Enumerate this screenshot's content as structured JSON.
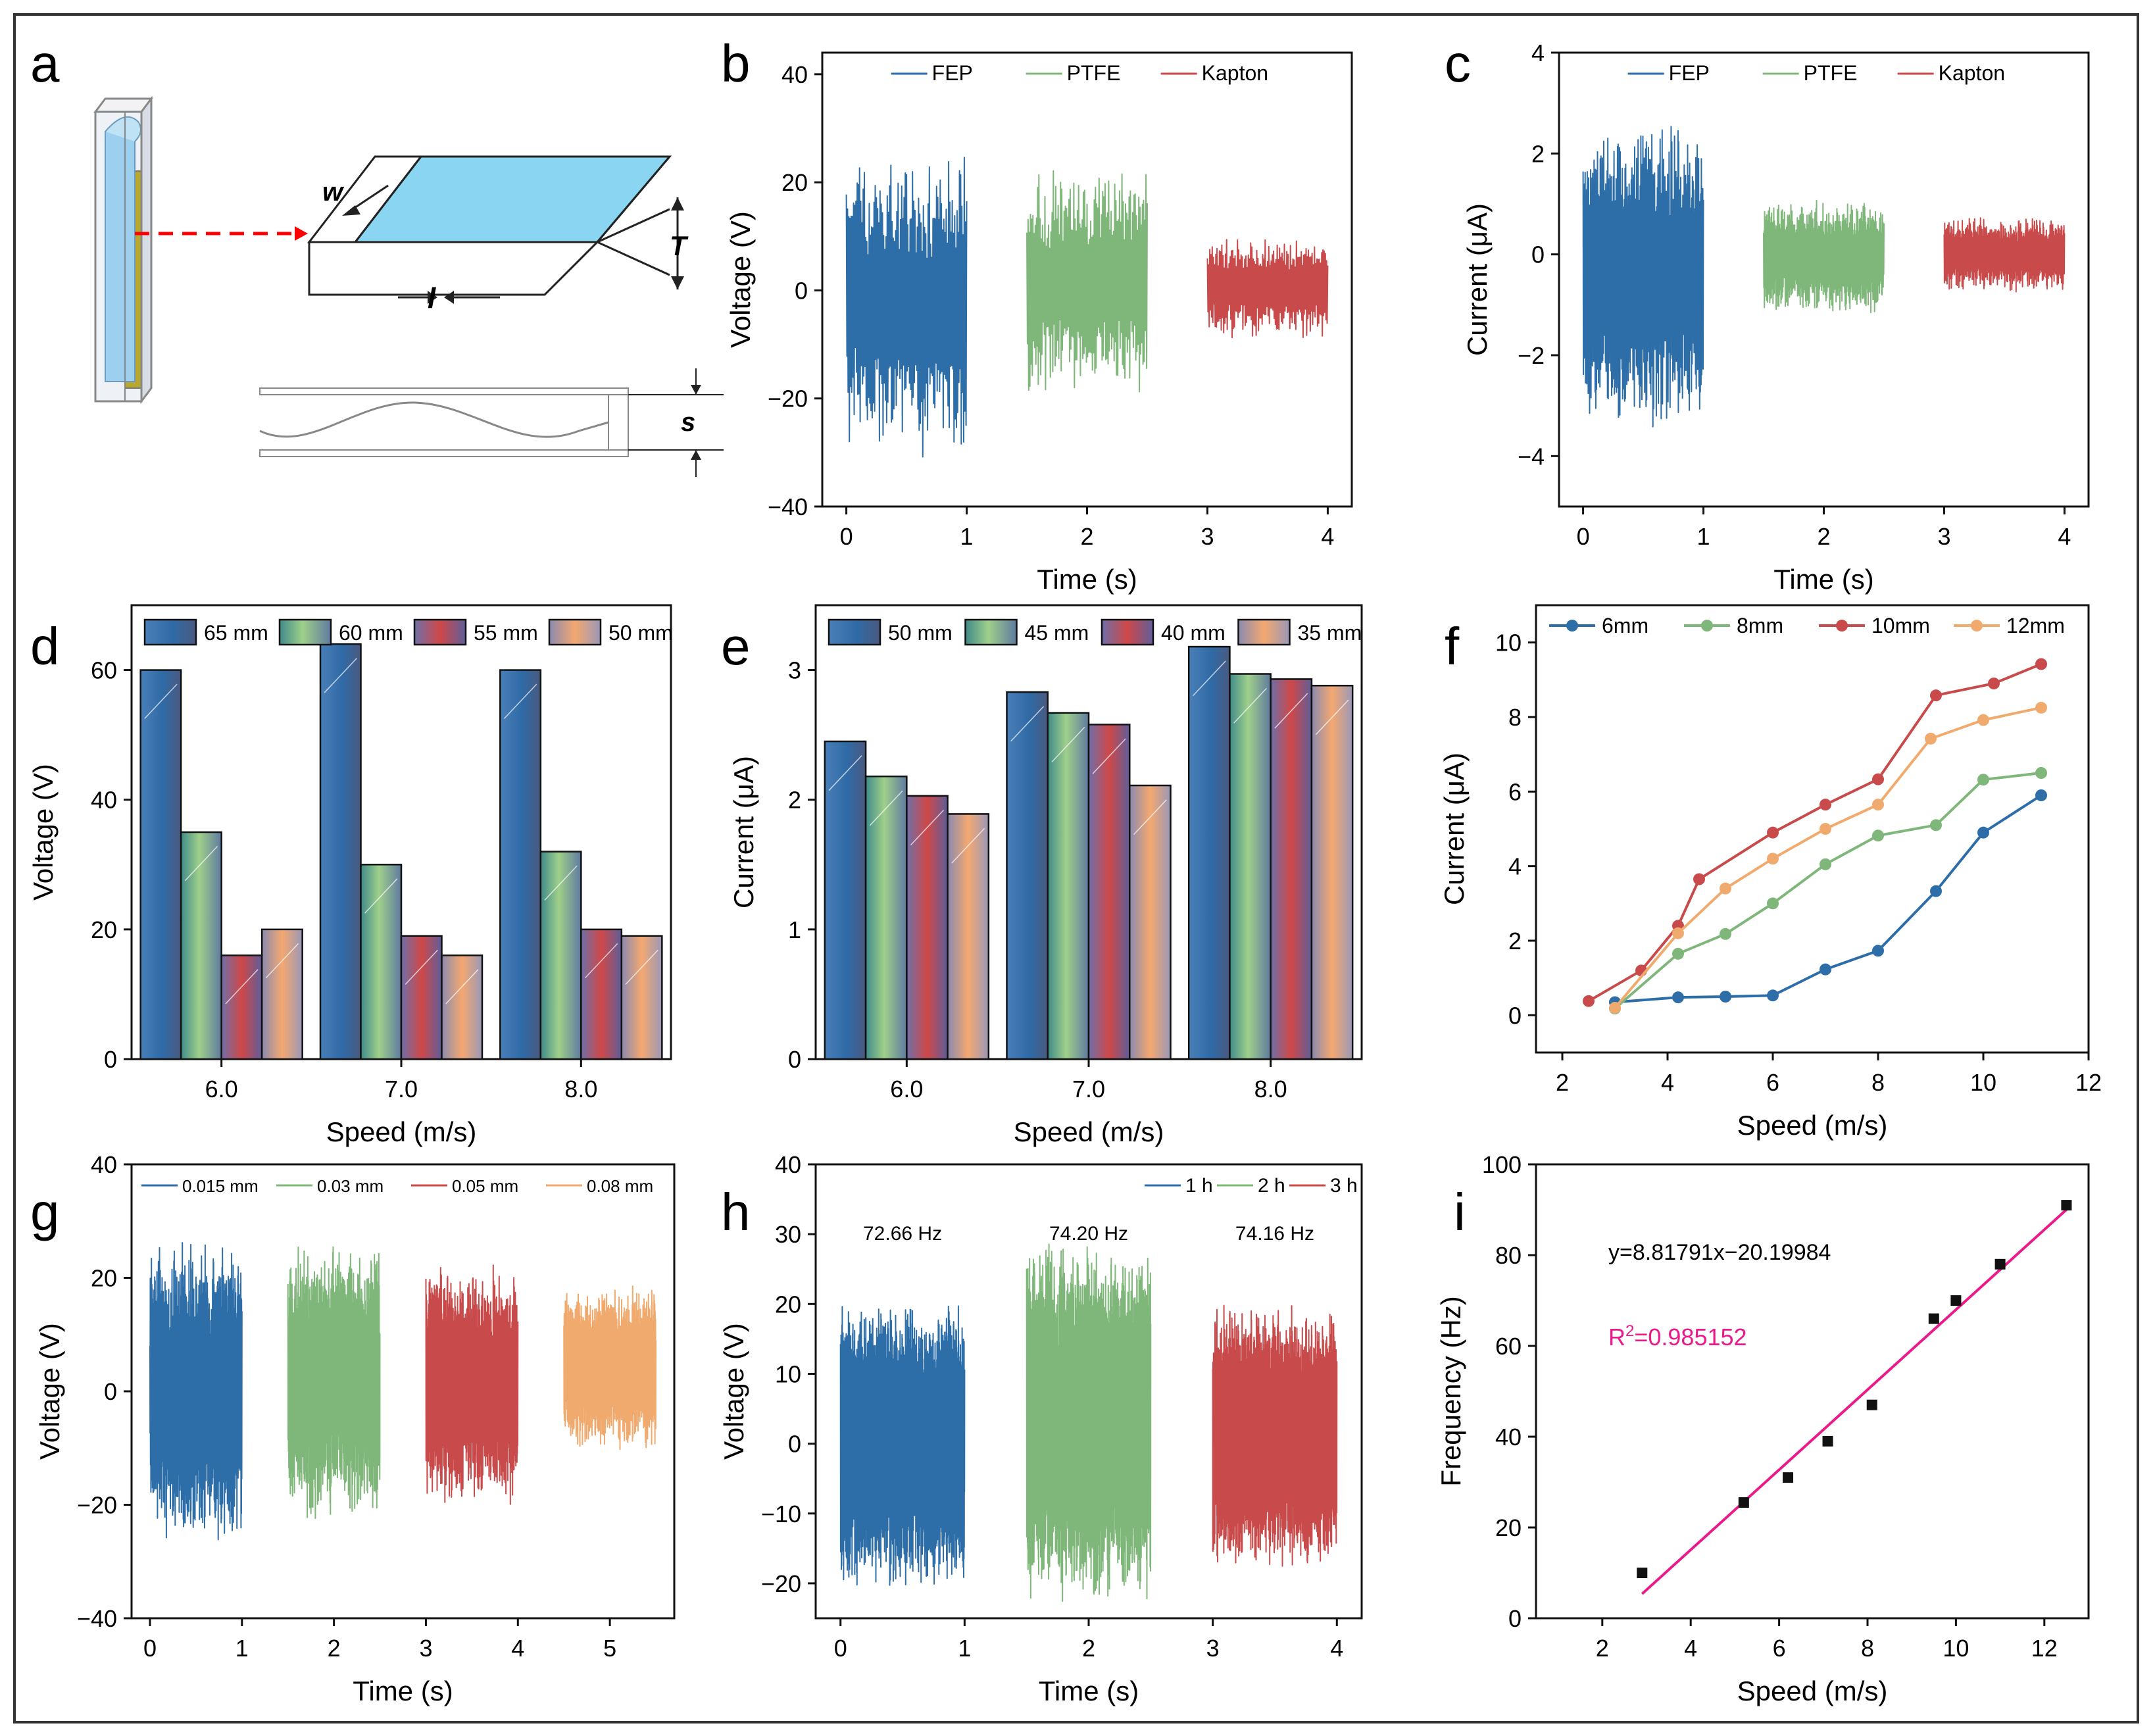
{
  "colors": {
    "blue": "#2e6ea8",
    "green": "#7fb77a",
    "red": "#c84a4a",
    "orange": "#f0aa6e",
    "cyan": "#8fd3f0",
    "magenta": "#ea1a8a",
    "darkred": "#c83a3a",
    "border": "#333333"
  },
  "panel_labels": [
    "a",
    "b",
    "c",
    "d",
    "e",
    "f",
    "g",
    "h",
    "i"
  ],
  "diagram": {
    "w_label": "w",
    "l_label": "l",
    "t_label": "T",
    "s_label": "s"
  },
  "chart_data": [
    {
      "id": "b",
      "type": "line",
      "title": "",
      "xlabel": "Time (s)",
      "ylabel": "Voltage (V)",
      "xlim": [
        -0.2,
        4.2
      ],
      "ylim": [
        -40,
        44
      ],
      "xticks": [
        0,
        1,
        2,
        3,
        4
      ],
      "yticks": [
        -40,
        -20,
        0,
        20,
        40
      ],
      "ytick_labels": [
        "−40",
        "−20",
        "0",
        "20",
        "40"
      ],
      "legend": [
        "FEP",
        "PTFE",
        "Kapton"
      ],
      "series": [
        {
          "name": "FEP",
          "x_range": [
            0,
            1
          ],
          "center": -2,
          "amplitude": 29,
          "density": 80,
          "seed": 11
        },
        {
          "name": "PTFE",
          "x_range": [
            1.5,
            2.5
          ],
          "center": 1.5,
          "amplitude": 22,
          "density": 80,
          "seed": 21
        },
        {
          "name": "Kapton",
          "x_range": [
            3,
            4
          ],
          "center": 0.5,
          "amplitude": 10,
          "density": 80,
          "seed": 31
        }
      ]
    },
    {
      "id": "c",
      "type": "line",
      "title": "",
      "xlabel": "Time (s)",
      "ylabel": "Current (μA)",
      "xlim": [
        -0.2,
        4.2
      ],
      "ylim": [
        -5,
        4
      ],
      "xticks": [
        0,
        1,
        2,
        3,
        4
      ],
      "yticks": [
        -4,
        -2,
        0,
        2,
        4
      ],
      "ytick_labels": [
        "−4",
        "−2",
        "0",
        "2",
        "4"
      ],
      "legend": [
        "FEP",
        "PTFE",
        "Kapton"
      ],
      "series": [
        {
          "name": "FEP",
          "x_range": [
            0,
            1
          ],
          "center": -0.4,
          "amplitude": 3.1,
          "density": 140,
          "seed": 41
        },
        {
          "name": "PTFE",
          "x_range": [
            1.5,
            2.5
          ],
          "center": -0.05,
          "amplitude": 1.15,
          "density": 180,
          "seed": 51
        },
        {
          "name": "Kapton",
          "x_range": [
            3,
            4
          ],
          "center": 0.0,
          "amplitude": 0.75,
          "density": 180,
          "seed": 61
        }
      ]
    },
    {
      "id": "d",
      "type": "bar",
      "title": "",
      "xlabel": "Speed (m/s)",
      "ylabel": "Voltage (V)",
      "categories": [
        "6.0",
        "7.0",
        "8.0"
      ],
      "ylim": [
        0,
        70
      ],
      "yticks": [
        0,
        20,
        40,
        60
      ],
      "legend": [
        "65 mm",
        "60 mm",
        "55 mm",
        "50 mm"
      ],
      "series": [
        {
          "name": "65 mm",
          "values": [
            60,
            64,
            60
          ]
        },
        {
          "name": "60 mm",
          "values": [
            35,
            30,
            32
          ]
        },
        {
          "name": "55 mm",
          "values": [
            16,
            19,
            20
          ]
        },
        {
          "name": "50 mm",
          "values": [
            20,
            16,
            19
          ]
        }
      ]
    },
    {
      "id": "e",
      "type": "bar",
      "title": "",
      "xlabel": "Speed (m/s)",
      "ylabel": "Current (μA)",
      "categories": [
        "6.0",
        "7.0",
        "8.0"
      ],
      "ylim": [
        0,
        3.5
      ],
      "yticks": [
        0,
        1,
        2,
        3
      ],
      "legend": [
        "50 mm",
        "45 mm",
        "40 mm",
        "35 mm"
      ],
      "series": [
        {
          "name": "50 mm",
          "values": [
            2.45,
            2.83,
            3.18
          ]
        },
        {
          "name": "45 mm",
          "values": [
            2.18,
            2.67,
            2.97
          ]
        },
        {
          "name": "40 mm",
          "values": [
            2.03,
            2.58,
            2.93
          ]
        },
        {
          "name": "35 mm",
          "values": [
            1.89,
            2.11,
            2.88
          ]
        }
      ]
    },
    {
      "id": "f",
      "type": "line",
      "title": "",
      "xlabel": "Speed (m/s)",
      "ylabel": "Current (μA)",
      "xlim": [
        1.5,
        12
      ],
      "ylim": [
        -1,
        11
      ],
      "xticks": [
        2,
        4,
        6,
        8,
        10,
        12
      ],
      "yticks": [
        0,
        2,
        4,
        6,
        8,
        10
      ],
      "legend": [
        "6mm",
        "8mm",
        "10mm",
        "12mm"
      ],
      "series": [
        {
          "name": "6mm",
          "x": [
            3.0,
            4.2,
            5.1,
            6.0,
            7.0,
            8.0,
            9.1,
            10.0,
            11.1
          ],
          "values": [
            0.35,
            0.48,
            0.5,
            0.53,
            1.23,
            1.73,
            3.33,
            4.9,
            5.9
          ]
        },
        {
          "name": "8mm",
          "x": [
            3.0,
            4.2,
            5.1,
            6.0,
            7.0,
            8.0,
            9.1,
            10.0,
            11.1
          ],
          "values": [
            0.18,
            1.65,
            2.18,
            3.0,
            4.05,
            4.82,
            5.1,
            6.32,
            6.5
          ]
        },
        {
          "name": "10mm",
          "x": [
            2.5,
            3.5,
            4.2,
            4.6,
            6.0,
            7.0,
            8.0,
            9.1,
            10.2,
            11.1
          ],
          "values": [
            0.38,
            1.2,
            2.4,
            3.65,
            4.9,
            5.65,
            6.33,
            8.58,
            8.9,
            9.42
          ]
        },
        {
          "name": "12mm",
          "x": [
            3.0,
            4.2,
            5.1,
            6.0,
            7.0,
            8.0,
            9.0,
            10.0,
            11.1
          ],
          "values": [
            0.2,
            2.2,
            3.4,
            4.2,
            5.0,
            5.65,
            7.42,
            7.92,
            8.25
          ]
        }
      ]
    },
    {
      "id": "g",
      "type": "line",
      "title": "",
      "xlabel": "Time (s)",
      "ylabel": "Voltage (V)",
      "xlim": [
        -0.2,
        5.7
      ],
      "ylim": [
        -40,
        40
      ],
      "xticks": [
        0,
        1,
        2,
        3,
        4,
        5
      ],
      "yticks": [
        -40,
        -20,
        0,
        20,
        40
      ],
      "ytick_labels": [
        "−40",
        "−20",
        "0",
        "20",
        "40"
      ],
      "legend": [
        "0.015 mm",
        "0.03 mm",
        "0.05 mm",
        "0.08 mm"
      ],
      "series": [
        {
          "name": "0.015 mm",
          "x_range": [
            0,
            1
          ],
          "center": 0,
          "amplitude": 27,
          "density": 200,
          "seed": 71
        },
        {
          "name": "0.03 mm",
          "x_range": [
            1.5,
            2.5
          ],
          "center": 2,
          "amplitude": 25,
          "density": 200,
          "seed": 81
        },
        {
          "name": "0.05 mm",
          "x_range": [
            3,
            4
          ],
          "center": 1,
          "amplitude": 22,
          "density": 200,
          "seed": 91
        },
        {
          "name": "0.08 mm",
          "x_range": [
            4.5,
            5.5
          ],
          "center": 4,
          "amplitude": 15,
          "density": 200,
          "seed": 101
        }
      ]
    },
    {
      "id": "h",
      "type": "line",
      "title": "",
      "xlabel": "Time (s)",
      "ylabel": "Voltage (V)",
      "xlim": [
        -0.2,
        4.2
      ],
      "ylim": [
        -25,
        40
      ],
      "xticks": [
        0,
        1,
        2,
        3,
        4
      ],
      "yticks": [
        -20,
        -10,
        0,
        10,
        20,
        30,
        40
      ],
      "ytick_labels": [
        "−20",
        "−10",
        "0",
        "10",
        "20",
        "30",
        "40"
      ],
      "legend": [
        "1 h",
        "2 h",
        "3 h"
      ],
      "annotations": [
        "72.66 Hz",
        "74.20 Hz",
        "74.16 Hz"
      ],
      "series": [
        {
          "name": "1 h",
          "x_range": [
            0,
            1
          ],
          "center": 0,
          "amplitude": 21,
          "density": 400,
          "seed": 111
        },
        {
          "name": "2 h",
          "x_range": [
            1.5,
            2.5
          ],
          "center": 3,
          "amplitude": 26,
          "density": 400,
          "seed": 121
        },
        {
          "name": "3 h",
          "x_range": [
            3,
            4
          ],
          "center": 1,
          "amplitude": 19,
          "density": 400,
          "seed": 131
        }
      ]
    },
    {
      "id": "i",
      "type": "scatter",
      "title": "",
      "xlabel": "Speed (m/s)",
      "ylabel": "Frequency (Hz)",
      "xlim": [
        0.5,
        13
      ],
      "ylim": [
        0,
        100
      ],
      "xticks": [
        2,
        4,
        6,
        8,
        10,
        12
      ],
      "yticks": [
        0,
        20,
        40,
        60,
        80,
        100
      ],
      "x": [
        2.9,
        5.2,
        6.2,
        7.1,
        8.1,
        9.5,
        10.0,
        11.0,
        12.5
      ],
      "values": [
        10,
        25.5,
        31,
        39,
        47,
        66,
        70,
        78,
        91
      ],
      "fit": {
        "slope": 8.81791,
        "intercept": -20.19984,
        "x_range": [
          2.9,
          12.5
        ]
      },
      "equation": "y=8.81791x−20.19984",
      "r2_prefix": "R",
      "r2_sup": "2",
      "r2_value": "=0.985152"
    }
  ]
}
